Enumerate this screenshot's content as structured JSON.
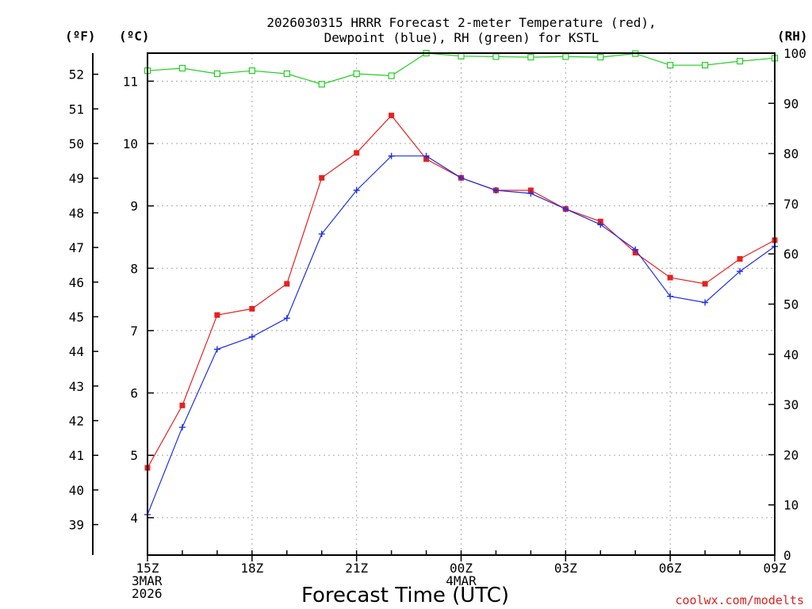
{
  "chart_data": {
    "type": "line",
    "title_line1": "2026030315 HRRR Forecast 2-meter Temperature (red),",
    "title_line2": "Dewpoint (blue), RH (green) for KSTL",
    "xlabel": "Forecast Time (UTC)",
    "credit": "coolwx.com/modelts",
    "unit_f": "(ºF)",
    "unit_c": "(ºC)",
    "unit_rh": "(RH)",
    "x_hours": [
      0,
      1,
      2,
      3,
      4,
      5,
      6,
      7,
      8,
      9,
      10,
      11,
      12,
      13,
      14,
      15,
      16,
      17,
      18
    ],
    "x_ticks": [
      {
        "hour": 0,
        "lines": [
          "15Z",
          "3MAR",
          "2026"
        ]
      },
      {
        "hour": 3,
        "lines": [
          "18Z"
        ]
      },
      {
        "hour": 6,
        "lines": [
          "21Z"
        ]
      },
      {
        "hour": 9,
        "lines": [
          "00Z",
          "4MAR"
        ]
      },
      {
        "hour": 12,
        "lines": [
          "03Z"
        ]
      },
      {
        "hour": 15,
        "lines": [
          "06Z"
        ]
      },
      {
        "hour": 18,
        "lines": [
          "09Z"
        ]
      }
    ],
    "c_ticks": [
      "4",
      "5",
      "6",
      "7",
      "8",
      "9",
      "10",
      "11"
    ],
    "f_ticks": [
      "39",
      "40",
      "41",
      "42",
      "43",
      "44",
      "45",
      "46",
      "47",
      "48",
      "49",
      "50",
      "51",
      "52"
    ],
    "rh_ticks": [
      "0",
      "10",
      "20",
      "30",
      "40",
      "50",
      "60",
      "70",
      "80",
      "90",
      "100"
    ],
    "ylim_c": [
      3.4,
      11.45
    ],
    "ylim_rh": [
      0,
      100
    ],
    "series": [
      {
        "name": "Temperature",
        "color": "#e82020",
        "axis": "C",
        "marker": "filled-square",
        "values": [
          4.8,
          5.8,
          7.25,
          7.35,
          7.75,
          9.45,
          9.85,
          10.45,
          9.75,
          9.45,
          9.25,
          9.25,
          8.95,
          8.75,
          8.25,
          7.85,
          7.75,
          8.15,
          8.45
        ]
      },
      {
        "name": "Dewpoint",
        "color": "#2030e0",
        "axis": "C",
        "marker": "plus",
        "values": [
          4.05,
          5.45,
          6.7,
          6.9,
          7.2,
          8.55,
          9.25,
          9.8,
          9.8,
          9.45,
          9.25,
          9.2,
          8.95,
          8.7,
          8.3,
          7.55,
          7.45,
          7.95,
          8.35
        ]
      },
      {
        "name": "RH",
        "color": "#20d020",
        "axis": "RH",
        "marker": "open-square",
        "values": [
          96.5,
          97.0,
          95.9,
          96.5,
          95.9,
          93.8,
          95.9,
          95.5,
          100.0,
          99.4,
          99.3,
          99.2,
          99.3,
          99.2,
          99.9,
          97.6,
          97.6,
          98.4,
          99.0
        ]
      }
    ]
  }
}
